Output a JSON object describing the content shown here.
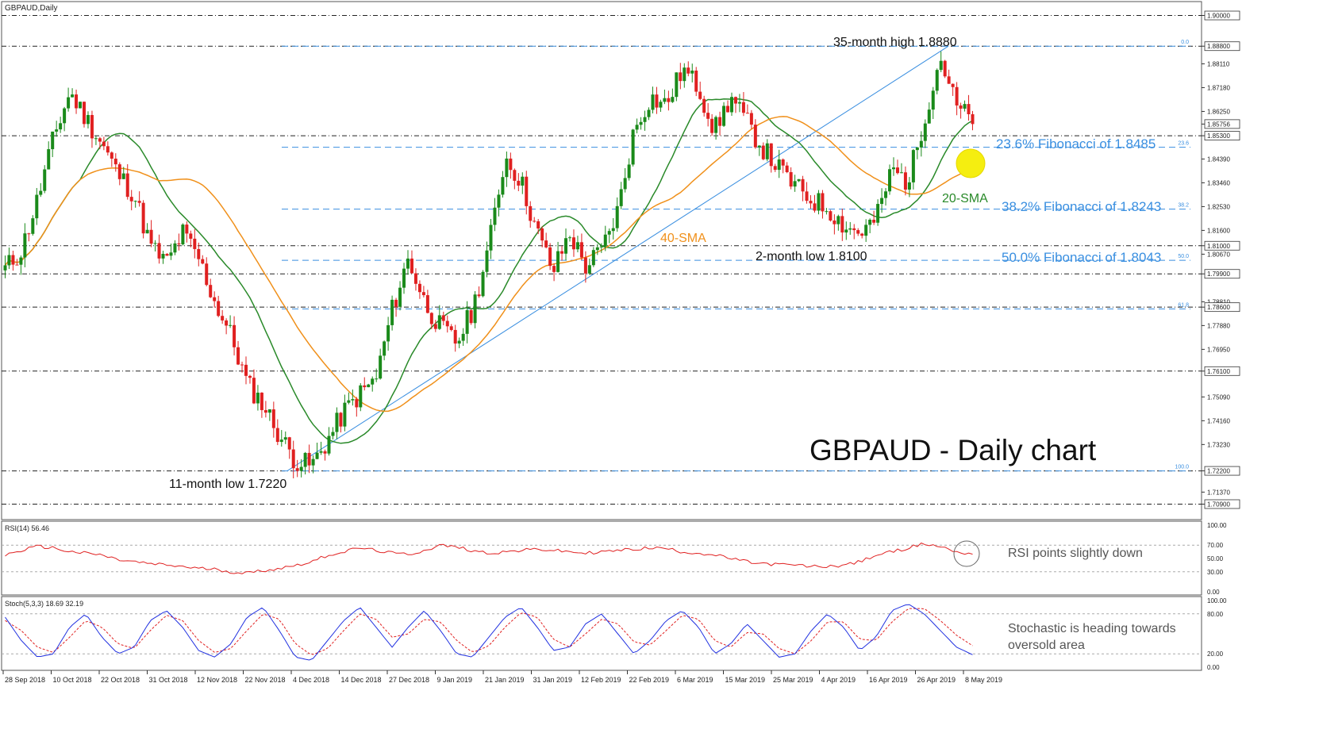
{
  "header": {
    "symbol_label": "GBPAUD,Daily"
  },
  "annotations": {
    "main_title": "GBPAUD - Daily chart",
    "high_label": "35-month high 1.8880",
    "low_label": "11-month low 1.7220",
    "two_month_low_label": "2-month low 1.8100",
    "sma20_label": "20-SMA",
    "sma40_label": "40-SMA",
    "fib236_label": "23.6% Fibonacci of 1.8485",
    "fib382_label": "38.2% Fibonacci of 1.8243",
    "fib500_label": "50.0% Fibonacci of 1.8043",
    "rsi_note": "RSI points slightly down",
    "stoch_note_line1": "Stochastic is heading towards",
    "stoch_note_line2": "oversold area"
  },
  "colors": {
    "bull": "#1a8a1a",
    "bear": "#e02020",
    "sma20": "#2a8a2a",
    "sma40": "#f0901a",
    "trendline": "#3a8fe0",
    "fib_text": "#3a8fe0",
    "rsi": "#e02020",
    "stoch_k": "#2030e0",
    "stoch_d": "#e02020",
    "highlight": "#f5ee10"
  },
  "chart_data": [
    {
      "type": "candlestick",
      "title": "GBPAUD - Daily chart",
      "y_axis_ticks": [
        "1.90000",
        "1.88800",
        "1.88110",
        "1.87180",
        "1.86250",
        "1.85756",
        "1.85300",
        "1.84390",
        "1.83460",
        "1.82530",
        "1.81600",
        "1.81000",
        "1.80670",
        "1.79900",
        "1.78810",
        "1.78600",
        "1.77880",
        "1.76950",
        "1.76100",
        "1.75090",
        "1.74160",
        "1.73230",
        "1.72200",
        "1.71370",
        "1.70900"
      ],
      "ylim": [
        1.7045,
        1.9045
      ],
      "x_axis_ticks": [
        "28 Sep 2018",
        "10 Oct 2018",
        "22 Oct 2018",
        "31 Oct 2018",
        "12 Nov 2018",
        "22 Nov 2018",
        "4 Dec 2018",
        "14 Dec 2018",
        "27 Dec 2018",
        "9 Jan 2019",
        "21 Jan 2019",
        "31 Jan 2019",
        "12 Feb 2019",
        "22 Feb 2019",
        "6 Mar 2019",
        "15 Mar 2019",
        "25 Mar 2019",
        "4 Apr 2019",
        "16 Apr 2019",
        "26 Apr 2019",
        "8 May 2019"
      ],
      "horizontal_levels": [
        1.9,
        1.888,
        1.853,
        1.81,
        1.799,
        1.786,
        1.761,
        1.722,
        1.709
      ],
      "current_price": "1.85756",
      "fibonacci": {
        "levels": [
          {
            "label": "0.0",
            "value": 1.888
          },
          {
            "label": "23.6",
            "value": 1.8485
          },
          {
            "label": "38.2",
            "value": 1.8243
          },
          {
            "label": "50.0",
            "value": 1.8043
          },
          {
            "label": "61.8",
            "value": 1.7853
          },
          {
            "label": "100.0",
            "value": 1.722
          }
        ]
      },
      "trendline": [
        [
          1.722,
          0
        ],
        [
          1.888,
          1
        ]
      ],
      "waypoints": [
        1.801,
        1.808,
        1.828,
        1.852,
        1.87,
        1.86,
        1.85,
        1.838,
        1.83,
        1.81,
        1.803,
        1.815,
        1.805,
        1.788,
        1.775,
        1.756,
        1.748,
        1.736,
        1.726,
        1.724,
        1.734,
        1.745,
        1.752,
        1.758,
        1.785,
        1.805,
        1.788,
        1.778,
        1.772,
        1.785,
        1.81,
        1.845,
        1.835,
        1.815,
        1.8,
        1.815,
        1.802,
        1.808,
        1.824,
        1.855,
        1.868,
        1.865,
        1.879,
        1.872,
        1.855,
        1.868,
        1.858,
        1.848,
        1.84,
        1.833,
        1.828,
        1.825,
        1.818,
        1.815,
        1.82,
        1.84,
        1.835,
        1.86,
        1.884,
        1.864,
        1.859
      ]
    },
    {
      "type": "line",
      "title": "RSI(14) 56.46",
      "ylim": [
        0,
        100
      ],
      "y_axis_ticks": [
        "100.00",
        "70.00",
        "50.00",
        "30.00",
        "0.00"
      ],
      "levels": [
        70,
        30
      ],
      "waypoints": [
        55,
        62,
        68,
        66,
        60,
        58,
        55,
        48,
        45,
        42,
        40,
        38,
        35,
        34,
        30,
        28,
        32,
        35,
        40,
        45,
        55,
        60,
        66,
        62,
        58,
        56,
        62,
        70,
        67,
        62,
        58,
        60,
        62,
        64,
        62,
        60,
        58,
        60,
        62,
        64,
        66,
        65,
        60,
        58,
        55,
        50,
        45,
        42,
        41,
        40,
        38,
        38,
        40,
        45,
        55,
        60,
        66,
        72,
        68,
        60,
        56.46
      ]
    },
    {
      "type": "line",
      "title": "Stoch(5,3,3) 18.69 32.19",
      "ylim": [
        0,
        100
      ],
      "y_axis_ticks": [
        "100.00",
        "80.00",
        "20.00",
        "0.00"
      ],
      "levels": [
        80,
        20
      ],
      "k_waypoints": [
        75,
        40,
        15,
        20,
        60,
        80,
        45,
        20,
        30,
        70,
        85,
        60,
        25,
        15,
        35,
        75,
        90,
        55,
        15,
        10,
        40,
        70,
        90,
        60,
        30,
        60,
        85,
        55,
        20,
        15,
        45,
        75,
        90,
        60,
        25,
        30,
        65,
        80,
        50,
        20,
        40,
        70,
        85,
        60,
        20,
        35,
        65,
        40,
        15,
        20,
        55,
        80,
        60,
        25,
        45,
        85,
        95,
        80,
        55,
        30,
        18.69
      ],
      "d_waypoints": [
        70,
        55,
        30,
        22,
        45,
        70,
        60,
        35,
        28,
        55,
        78,
        70,
        40,
        22,
        28,
        55,
        80,
        72,
        35,
        18,
        28,
        55,
        80,
        72,
        45,
        50,
        72,
        68,
        40,
        22,
        32,
        60,
        82,
        75,
        42,
        30,
        50,
        72,
        65,
        38,
        33,
        55,
        78,
        72,
        40,
        30,
        52,
        50,
        28,
        20,
        40,
        68,
        68,
        42,
        40,
        68,
        88,
        88,
        70,
        48,
        32.19
      ]
    }
  ]
}
